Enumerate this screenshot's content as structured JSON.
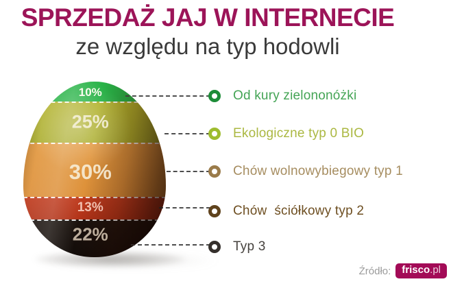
{
  "header": {
    "title": "SPRZEDAŻ JAJ W INTERNECIE",
    "subtitle": "ze względu na typ hodowli"
  },
  "chart_data": {
    "type": "pie",
    "variant": "egg-shaped stacked proportional segments with right-side legend",
    "title": "Sprzedaż jaj w internecie ze względu na typ hodowli",
    "categories": [
      "Od kury zielononóżki",
      "Ekologiczne typ 0 BIO",
      "Chów wolnowybiegowy typ 1",
      "Chów  ściółkowy typ 2",
      "Typ 3"
    ],
    "values": [
      10,
      25,
      30,
      13,
      22
    ],
    "unit": "%",
    "legend_position": "right",
    "segments": [
      {
        "label": "Od kury zielononóżki",
        "value": 10,
        "pct_label": "10%",
        "segment_color": "#28b347",
        "bullet_color": "#1d8c38",
        "text_color": "#44a455"
      },
      {
        "label": "Ekologiczne typ 0 BIO",
        "value": 25,
        "pct_label": "25%",
        "segment_color": "#b2b22c",
        "bullet_color": "#9ebc2f",
        "text_color": "#abb842"
      },
      {
        "label": "Chów wolnowybiegowy typ 1",
        "value": 30,
        "pct_label": "30%",
        "segment_color": "#e2983f",
        "bullet_color": "#9a7b4a",
        "text_color": "#a68d60"
      },
      {
        "label": "Chów  ściółkowy typ 2",
        "value": 13,
        "pct_label": "13%",
        "segment_color": "#c03c1f",
        "bullet_color": "#5f431d",
        "text_color": "#6e4f22"
      },
      {
        "label": "Typ 3",
        "value": 22,
        "pct_label": "22%",
        "segment_color": "#17100d",
        "bullet_color": "#35302c",
        "text_color": "#46423e"
      }
    ]
  },
  "source": {
    "label": "Źródło:",
    "brand": "frisco",
    "brand_suffix": ".pl",
    "badge_color": "#a30b57",
    "title_color": "#9c1458"
  }
}
